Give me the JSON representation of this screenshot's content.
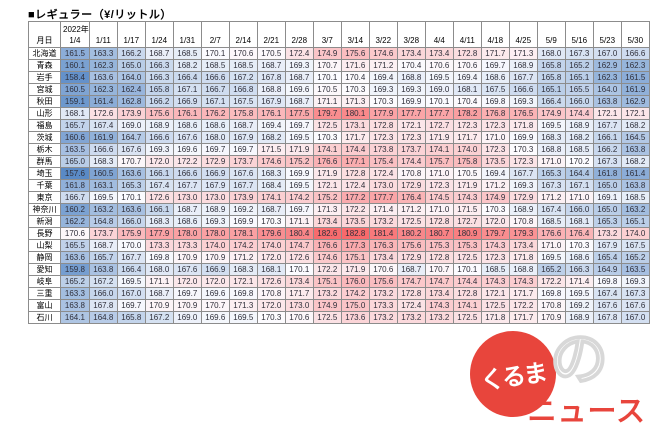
{
  "title": "■レギュラー（¥/リットル）",
  "header": {
    "corner": "月日",
    "year": "2022年"
  },
  "heatmap_colors": {
    "low": "#5a8ac6",
    "mid": "#fcfcff",
    "high": "#f8696b"
  },
  "logo": {
    "circle_text": "くるま",
    "no_char": "の",
    "news_text": "ニュース"
  },
  "chart_data": {
    "type": "heatmap",
    "title": "レギュラー（¥/リットル）",
    "x": [
      "1/4",
      "1/11",
      "1/17",
      "1/24",
      "1/31",
      "2/7",
      "2/14",
      "2/21",
      "2/28",
      "3/7",
      "3/14",
      "3/22",
      "3/28",
      "4/4",
      "4/11",
      "4/18",
      "4/25",
      "5/9",
      "5/16",
      "5/23",
      "5/30"
    ],
    "categories": [
      "北海道",
      "青森",
      "岩手",
      "宮城",
      "秋田",
      "山形",
      "福島",
      "茨城",
      "栃木",
      "群馬",
      "埼玉",
      "千葉",
      "東京",
      "神奈川",
      "新潟",
      "長野",
      "山梨",
      "静岡",
      "愛知",
      "岐阜",
      "三重",
      "富山",
      "石川"
    ],
    "series": [
      {
        "name": "北海道",
        "values": [
          161.5,
          163.3,
          166.2,
          168.7,
          168.5,
          170.1,
          170.6,
          170.5,
          172.4,
          174.9,
          175.6,
          174.6,
          173.4,
          173.4,
          172.8,
          171.7,
          171.3,
          168.0,
          167.3,
          167.0,
          166.6
        ]
      },
      {
        "name": "青森",
        "values": [
          160.1,
          162.3,
          165.0,
          166.3,
          168.2,
          168.5,
          168.5,
          168.7,
          169.3,
          170.7,
          171.6,
          171.2,
          170.4,
          170.6,
          170.6,
          169.7,
          168.9,
          165.8,
          165.2,
          162.9,
          162.3
        ]
      },
      {
        "name": "岩手",
        "values": [
          158.4,
          163.6,
          164.0,
          166.3,
          166.4,
          166.6,
          167.2,
          167.8,
          168.7,
          170.1,
          170.4,
          169.4,
          168.8,
          169.5,
          169.4,
          168.6,
          167.7,
          165.8,
          165.1,
          162.3,
          161.5
        ]
      },
      {
        "name": "宮城",
        "values": [
          160.5,
          162.3,
          162.4,
          165.8,
          167.1,
          166.7,
          166.8,
          168.8,
          169.6,
          170.5,
          170.3,
          169.3,
          169.3,
          169.0,
          168.1,
          167.5,
          166.6,
          165.1,
          165.5,
          164.0,
          161.9
        ]
      },
      {
        "name": "秋田",
        "values": [
          159.1,
          161.4,
          162.8,
          166.2,
          166.9,
          167.1,
          167.5,
          167.9,
          168.7,
          171.1,
          171.3,
          170.3,
          169.9,
          170.1,
          170.4,
          169.8,
          169.3,
          166.4,
          166.0,
          163.8,
          162.9
        ]
      },
      {
        "name": "山形",
        "values": [
          168.1,
          172.6,
          173.9,
          175.6,
          176.1,
          176.2,
          175.8,
          176.1,
          177.5,
          179.7,
          180.1,
          177.9,
          177.7,
          177.7,
          178.2,
          176.8,
          176.5,
          174.9,
          174.4,
          172.1,
          172.1
        ]
      },
      {
        "name": "福島",
        "values": [
          165.7,
          167.4,
          169.0,
          168.9,
          168.6,
          168.6,
          168.7,
          169.4,
          169.7,
          172.5,
          173.1,
          172.8,
          172.1,
          172.7,
          172.3,
          172.3,
          171.8,
          169.5,
          168.9,
          167.7,
          168.2
        ]
      },
      {
        "name": "茨城",
        "values": [
          160.6,
          161.9,
          164.7,
          166.6,
          167.6,
          168.0,
          167.9,
          168.2,
          169.5,
          170.3,
          171.7,
          172.3,
          172.3,
          171.9,
          171.7,
          171.0,
          169.9,
          168.3,
          168.2,
          166.1,
          164.5
        ]
      },
      {
        "name": "栃木",
        "values": [
          163.5,
          166.6,
          167.6,
          169.3,
          169.6,
          169.7,
          169.7,
          171.5,
          171.9,
          174.1,
          174.4,
          173.8,
          173.7,
          174.1,
          174.0,
          172.3,
          170.3,
          168.8,
          168.5,
          166.2,
          163.8
        ]
      },
      {
        "name": "群馬",
        "values": [
          165.0,
          168.3,
          170.7,
          172.0,
          172.2,
          172.9,
          173.7,
          174.6,
          175.2,
          176.6,
          177.1,
          175.4,
          174.4,
          175.7,
          175.8,
          173.5,
          172.3,
          171.0,
          170.2,
          167.3,
          168.2
        ]
      },
      {
        "name": "埼玉",
        "values": [
          157.6,
          160.5,
          163.6,
          166.1,
          166.6,
          166.9,
          167.6,
          168.3,
          169.9,
          171.9,
          172.8,
          172.4,
          170.8,
          171.0,
          170.5,
          169.4,
          167.7,
          165.3,
          164.4,
          161.8,
          161.4
        ]
      },
      {
        "name": "千葉",
        "values": [
          161.8,
          163.1,
          165.3,
          167.4,
          167.7,
          167.9,
          167.7,
          168.4,
          169.5,
          172.1,
          172.4,
          173.0,
          172.9,
          172.3,
          171.9,
          171.2,
          169.3,
          167.3,
          167.1,
          165.0,
          163.8
        ]
      },
      {
        "name": "東京",
        "values": [
          166.7,
          169.5,
          170.1,
          172.6,
          173.0,
          173.0,
          173.9,
          174.1,
          174.2,
          175.2,
          177.2,
          177.7,
          176.4,
          174.5,
          174.3,
          174.9,
          172.9,
          171.2,
          171.0,
          169.1,
          168.5
        ]
      },
      {
        "name": "神奈川",
        "values": [
          160.2,
          163.2,
          163.6,
          166.1,
          168.7,
          168.9,
          169.2,
          168.7,
          169.7,
          171.3,
          172.2,
          171.4,
          171.2,
          171.0,
          171.5,
          170.3,
          168.9,
          167.4,
          166.0,
          165.0,
          163.2
        ]
      },
      {
        "name": "新潟",
        "values": [
          162.2,
          164.8,
          166.0,
          168.3,
          168.6,
          169.3,
          169.9,
          170.3,
          171.1,
          173.4,
          173.5,
          173.2,
          172.5,
          172.8,
          172.7,
          172.0,
          170.8,
          168.5,
          168.1,
          165.3,
          165.1
        ]
      },
      {
        "name": "長野",
        "values": [
          170.6,
          173.7,
          175.9,
          177.9,
          178.0,
          178.0,
          178.1,
          179.6,
          180.4,
          182.6,
          182.8,
          181.4,
          180.2,
          180.7,
          180.9,
          179.7,
          179.3,
          176.6,
          176.4,
          173.2,
          174.0
        ]
      },
      {
        "name": "山梨",
        "values": [
          165.5,
          168.7,
          170.0,
          173.3,
          173.3,
          174.0,
          174.2,
          174.0,
          174.7,
          176.6,
          177.3,
          176.3,
          175.6,
          175.3,
          175.3,
          174.3,
          173.4,
          171.0,
          170.3,
          167.9,
          167.5
        ]
      },
      {
        "name": "静岡",
        "values": [
          163.6,
          165.7,
          167.7,
          169.8,
          170.9,
          170.9,
          171.2,
          172.0,
          172.6,
          174.6,
          175.1,
          173.4,
          172.9,
          172.8,
          172.5,
          172.3,
          171.8,
          169.5,
          168.6,
          165.4,
          165.2
        ]
      },
      {
        "name": "愛知",
        "values": [
          159.8,
          163.8,
          166.4,
          168.0,
          167.6,
          166.9,
          168.3,
          168.1,
          170.1,
          172.2,
          171.9,
          170.6,
          168.7,
          170.7,
          170.1,
          168.5,
          168.8,
          165.2,
          166.3,
          164.9,
          163.5
        ]
      },
      {
        "name": "岐阜",
        "values": [
          165.2,
          167.2,
          169.5,
          171.1,
          172.0,
          172.0,
          172.1,
          172.6,
          173.4,
          175.1,
          176.0,
          175.6,
          174.7,
          174.7,
          174.4,
          174.3,
          174.3,
          172.2,
          171.4,
          169.8,
          169.3
        ]
      },
      {
        "name": "三重",
        "values": [
          163.3,
          166.0,
          167.0,
          168.7,
          169.7,
          169.6,
          169.8,
          170.8,
          171.7,
          173.2,
          174.2,
          173.2,
          172.8,
          173.4,
          172.8,
          172.1,
          171.7,
          169.8,
          169.5,
          167.4,
          167.3
        ]
      },
      {
        "name": "富山",
        "values": [
          163.8,
          167.8,
          169.7,
          170.9,
          170.9,
          170.7,
          171.3,
          172.0,
          173.0,
          174.9,
          175.0,
          173.3,
          172.4,
          174.3,
          174.1,
          172.5,
          172.2,
          170.8,
          169.2,
          167.6,
          167.6
        ]
      },
      {
        "name": "石川",
        "values": [
          164.1,
          164.8,
          165.8,
          167.2,
          169.0,
          169.6,
          169.5,
          170.3,
          170.6,
          172.5,
          173.6,
          173.2,
          173.2,
          173.2,
          172.5,
          171.8,
          171.7,
          170.9,
          168.9,
          167.8,
          167.0
        ]
      }
    ],
    "value_range": [
      157.6,
      182.8
    ],
    "color_scale": {
      "low": "#5a8ac6",
      "mid": "#fcfcff",
      "high": "#f8696b"
    },
    "legend": "none",
    "grid": true
  }
}
